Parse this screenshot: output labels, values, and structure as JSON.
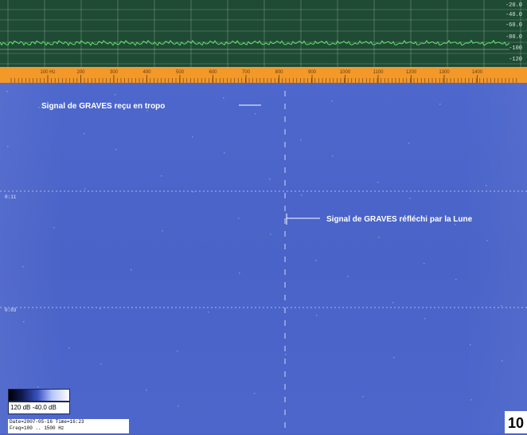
{
  "spectrum": {
    "db_labels": [
      "-20.0",
      "-40.0",
      "-60.0",
      "-80.0",
      "-100",
      "-120"
    ],
    "frequency_ticks": [
      "100 Hz",
      "200",
      "300",
      "400",
      "500",
      "600",
      "700",
      "800",
      "900",
      "1000",
      "1100",
      "1200",
      "1300",
      "1400"
    ]
  },
  "annotations": {
    "tropo": "Signal de GRAVES reçu en tropo",
    "moon": "Signal de GRAVES réfléchi par la Lune"
  },
  "waterfall": {
    "time_marks": [
      "0:11",
      "0:03"
    ]
  },
  "legend": {
    "range": "120 dB -40.0 dB"
  },
  "info": {
    "line1": "Date=2007-05-16 Time=16:23",
    "line2": "Freq=100 .. 1500 Hz"
  },
  "figure_number": "10",
  "colors": {
    "spectrum_bg": "#1f4a34",
    "trace": "#5fe36a",
    "ruler": "#f2992a",
    "waterfall": "#4a63c9"
  }
}
